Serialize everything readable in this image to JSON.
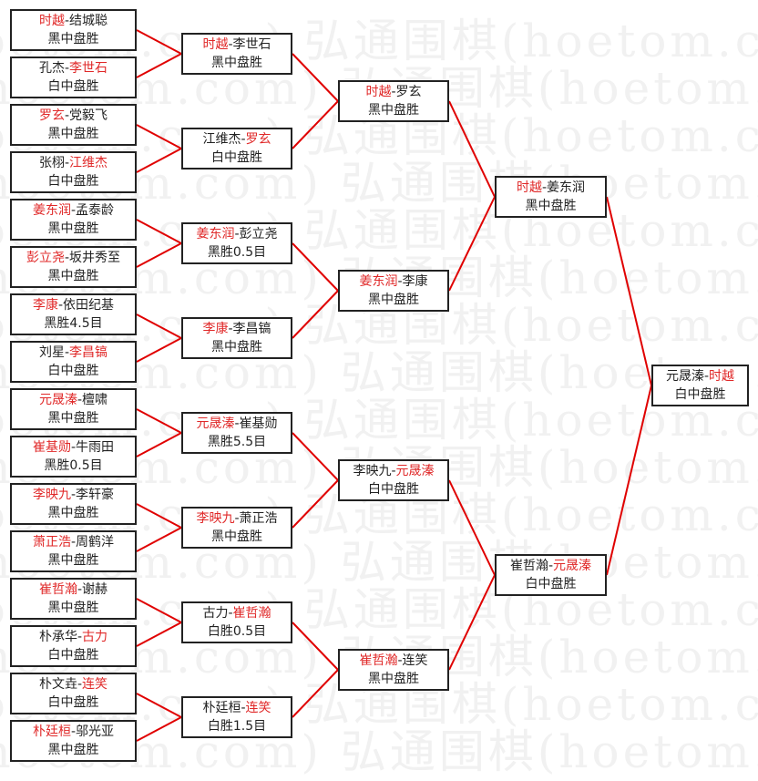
{
  "watermark": "弘通围棋(hoetom.com)",
  "sep": "-",
  "colors": {
    "winner": "#e02828",
    "line": "#e00000",
    "border": "#222222"
  },
  "rounds": [
    [
      {
        "p1": "时越",
        "p2": "结城聪",
        "winner": 1,
        "result": "黑中盘胜"
      },
      {
        "p1": "孔杰",
        "p2": "李世石",
        "winner": 2,
        "result": "白中盘胜"
      },
      {
        "p1": "罗玄",
        "p2": "党毅飞",
        "winner": 1,
        "result": "黑中盘胜"
      },
      {
        "p1": "张栩",
        "p2": "江维杰",
        "winner": 2,
        "result": "白中盘胜"
      },
      {
        "p1": "姜东润",
        "p2": "孟泰龄",
        "winner": 1,
        "result": "黑中盘胜"
      },
      {
        "p1": "彭立尧",
        "p2": "坂井秀至",
        "winner": 1,
        "result": "黑中盘胜"
      },
      {
        "p1": "李康",
        "p2": "依田纪基",
        "winner": 1,
        "result": "黑胜4.5目"
      },
      {
        "p1": "刘星",
        "p2": "李昌镐",
        "winner": 2,
        "result": "白中盘胜"
      },
      {
        "p1": "元晟溱",
        "p2": "檀啸",
        "winner": 1,
        "result": "黑中盘胜"
      },
      {
        "p1": "崔基勋",
        "p2": "牛雨田",
        "winner": 1,
        "result": "黑胜0.5目"
      },
      {
        "p1": "李映九",
        "p2": "李轩豪",
        "winner": 1,
        "result": "黑中盘胜"
      },
      {
        "p1": "萧正浩",
        "p2": "周鹤洋",
        "winner": 1,
        "result": "黑中盘胜"
      },
      {
        "p1": "崔哲瀚",
        "p2": "谢赫",
        "winner": 1,
        "result": "黑中盘胜"
      },
      {
        "p1": "朴承华",
        "p2": "古力",
        "winner": 2,
        "result": "白中盘胜"
      },
      {
        "p1": "朴文垚",
        "p2": "连笑",
        "winner": 2,
        "result": "白中盘胜"
      },
      {
        "p1": "朴廷桓",
        "p2": "邬光亚",
        "winner": 1,
        "result": "黑中盘胜"
      }
    ],
    [
      {
        "p1": "时越",
        "p2": "李世石",
        "winner": 1,
        "result": "黑中盘胜"
      },
      {
        "p1": "江维杰",
        "p2": "罗玄",
        "winner": 2,
        "result": "白中盘胜"
      },
      {
        "p1": "姜东润",
        "p2": "彭立尧",
        "winner": 1,
        "result": "黑胜0.5目"
      },
      {
        "p1": "李康",
        "p2": "李昌镐",
        "winner": 1,
        "result": "黑中盘胜"
      },
      {
        "p1": "元晟溱",
        "p2": "崔基勋",
        "winner": 1,
        "result": "黑胜5.5目"
      },
      {
        "p1": "李映九",
        "p2": "萧正浩",
        "winner": 1,
        "result": "黑中盘胜"
      },
      {
        "p1": "古力",
        "p2": "崔哲瀚",
        "winner": 2,
        "result": "白胜0.5目"
      },
      {
        "p1": "朴廷桓",
        "p2": "连笑",
        "winner": 2,
        "result": "白胜1.5目"
      }
    ],
    [
      {
        "p1": "时越",
        "p2": "罗玄",
        "winner": 1,
        "result": "黑中盘胜"
      },
      {
        "p1": "姜东润",
        "p2": "李康",
        "winner": 1,
        "result": "黑中盘胜"
      },
      {
        "p1": "李映九",
        "p2": "元晟溱",
        "winner": 2,
        "result": "白中盘胜"
      },
      {
        "p1": "崔哲瀚",
        "p2": "连笑",
        "winner": 1,
        "result": "黑中盘胜"
      }
    ],
    [
      {
        "p1": "时越",
        "p2": "姜东润",
        "winner": 1,
        "result": "黑中盘胜"
      },
      {
        "p1": "崔哲瀚",
        "p2": "元晟溱",
        "winner": 2,
        "result": "白中盘胜"
      }
    ],
    [
      {
        "p1": "元晟溱",
        "p2": "时越",
        "winner": 2,
        "result": "白中盘胜"
      }
    ]
  ]
}
